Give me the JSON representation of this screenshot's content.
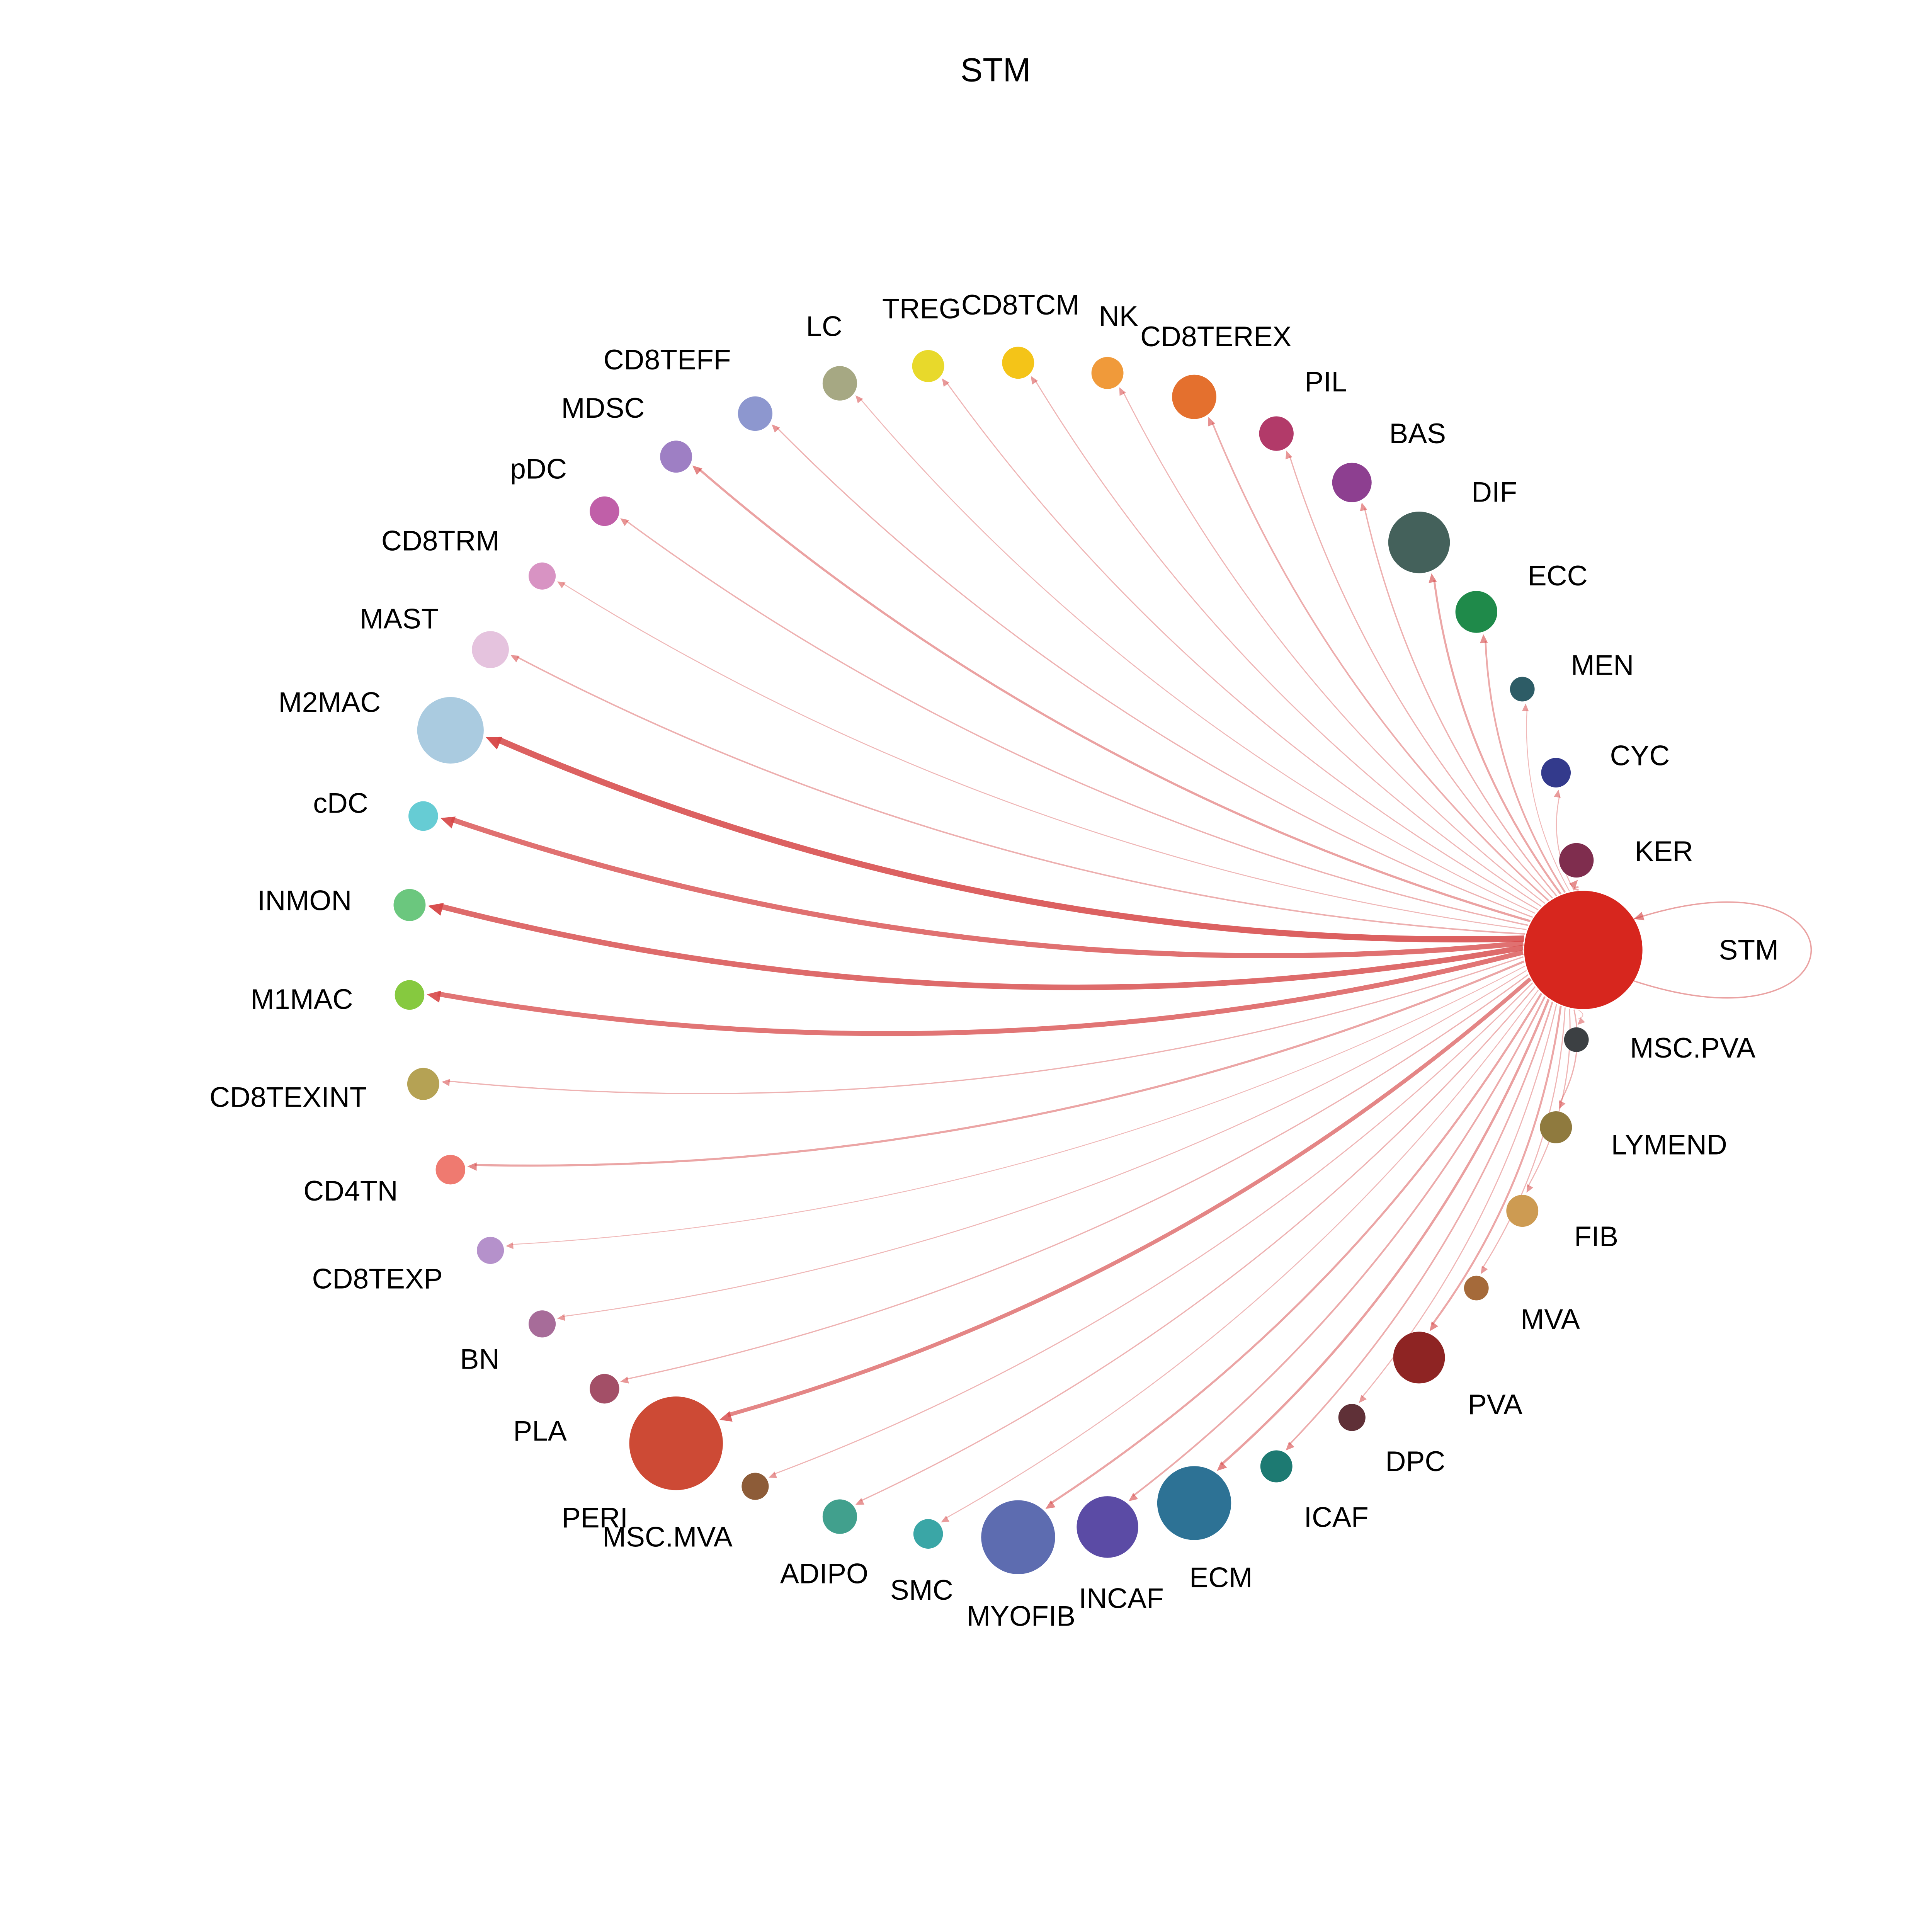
{
  "title": "STM",
  "chart_data": {
    "type": "circular-network",
    "description_visible": "STM",
    "source_node": "STM",
    "edge_color": "#d64545",
    "legend_position": "none",
    "grid": false,
    "nodes": [
      {
        "label": "STM",
        "color": "#d7261e",
        "size": 48,
        "edge_width": 1.1,
        "self_loop": true
      },
      {
        "label": "KER",
        "color": "#7f2d4e",
        "size": 14,
        "edge_width": 1.4
      },
      {
        "label": "CYC",
        "color": "#333a8c",
        "size": 12,
        "edge_width": 0.8
      },
      {
        "label": "MEN",
        "color": "#2d5c66",
        "size": 10,
        "edge_width": 0.7
      },
      {
        "label": "ECC",
        "color": "#1f8a4a",
        "size": 17,
        "edge_width": 1.4
      },
      {
        "label": "DIF",
        "color": "#44615b",
        "size": 25,
        "edge_width": 1.6
      },
      {
        "label": "BAS",
        "color": "#8d3f90",
        "size": 16,
        "edge_width": 1.1
      },
      {
        "label": "PIL",
        "color": "#b23a69",
        "size": 14,
        "edge_width": 1.0
      },
      {
        "label": "CD8TEREX",
        "color": "#e4702e",
        "size": 18,
        "edge_width": 1.3
      },
      {
        "label": "NK",
        "color": "#f09a3a",
        "size": 13,
        "edge_width": 0.9
      },
      {
        "label": "CD8TCM",
        "color": "#f4c418",
        "size": 13,
        "edge_width": 0.9
      },
      {
        "label": "TREG",
        "color": "#e8d92b",
        "size": 13,
        "edge_width": 0.9
      },
      {
        "label": "LC",
        "color": "#a6a883",
        "size": 14,
        "edge_width": 0.8
      },
      {
        "label": "CD8TEFF",
        "color": "#8d97cf",
        "size": 14,
        "edge_width": 1.0
      },
      {
        "label": "MDSC",
        "color": "#9e7fc4",
        "size": 13,
        "edge_width": 1.8
      },
      {
        "label": "pDC",
        "color": "#c05fa8",
        "size": 12,
        "edge_width": 1.1
      },
      {
        "label": "CD8TRM",
        "color": "#d893c3",
        "size": 11,
        "edge_width": 0.8
      },
      {
        "label": "MAST",
        "color": "#e5c3de",
        "size": 15,
        "edge_width": 1.2
      },
      {
        "label": "M2MAC",
        "color": "#aacbe0",
        "size": 27,
        "edge_width": 5.0
      },
      {
        "label": "cDC",
        "color": "#66ccd4",
        "size": 12,
        "edge_width": 4.2
      },
      {
        "label": "INMON",
        "color": "#6bc77e",
        "size": 13,
        "edge_width": 4.5
      },
      {
        "label": "M1MAC",
        "color": "#86c93f",
        "size": 12,
        "edge_width": 4.0
      },
      {
        "label": "CD8TEXINT",
        "color": "#b5a254",
        "size": 13,
        "edge_width": 1.0
      },
      {
        "label": "CD4TN",
        "color": "#ef7a70",
        "size": 12,
        "edge_width": 1.7
      },
      {
        "label": "CD8TEXP",
        "color": "#b591cb",
        "size": 11,
        "edge_width": 0.7
      },
      {
        "label": "BN",
        "color": "#a76c99",
        "size": 11,
        "edge_width": 0.8
      },
      {
        "label": "PLA",
        "color": "#a34f67",
        "size": 12,
        "edge_width": 1.0
      },
      {
        "label": "PERI",
        "color": "#cd4a35",
        "size": 38,
        "edge_width": 3.2
      },
      {
        "label": "MSC.MVA",
        "color": "#8d5c38",
        "size": 11,
        "edge_width": 0.9
      },
      {
        "label": "ADIPO",
        "color": "#41a08d",
        "size": 14,
        "edge_width": 1.0
      },
      {
        "label": "SMC",
        "color": "#3aa6a6",
        "size": 12,
        "edge_width": 0.8
      },
      {
        "label": "MYOFIB",
        "color": "#5d6cb0",
        "size": 30,
        "edge_width": 1.7
      },
      {
        "label": "INCAF",
        "color": "#5b4ba5",
        "size": 25,
        "edge_width": 1.4
      },
      {
        "label": "ECM",
        "color": "#2d7295",
        "size": 30,
        "edge_width": 1.9
      },
      {
        "label": "ICAF",
        "color": "#1d7a72",
        "size": 13,
        "edge_width": 1.3
      },
      {
        "label": "DPC",
        "color": "#5f3037",
        "size": 11,
        "edge_width": 0.9
      },
      {
        "label": "PVA",
        "color": "#8e2423",
        "size": 21,
        "edge_width": 1.6
      },
      {
        "label": "MVA",
        "color": "#a56a3a",
        "size": 10,
        "edge_width": 0.9
      },
      {
        "label": "FIB",
        "color": "#cd9b52",
        "size": 13,
        "edge_width": 0.9
      },
      {
        "label": "LYMEND",
        "color": "#8f7a3e",
        "size": 13,
        "edge_width": 1.0
      },
      {
        "label": "MSC.PVA",
        "color": "#3c4043",
        "size": 10,
        "edge_width": 0.6
      }
    ]
  }
}
